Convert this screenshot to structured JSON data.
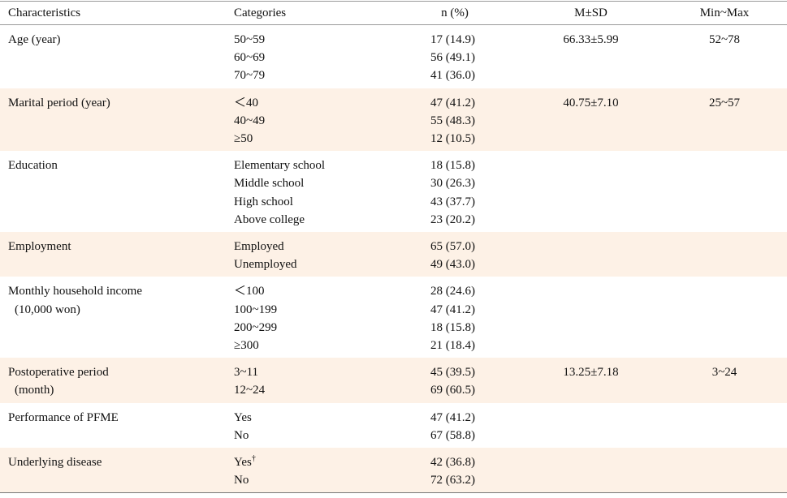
{
  "table": {
    "header": [
      "Characteristics",
      "Categories",
      "n (%)",
      "M±SD",
      "Min~Max"
    ],
    "rows": [
      {
        "characteristic": [
          "Age (year)"
        ],
        "items": [
          {
            "category": "50~59",
            "n": "17 (14.9)"
          },
          {
            "category": "60~69",
            "n": "56 (49.1)"
          },
          {
            "category": "70~79",
            "n": "41 (36.0)"
          }
        ],
        "msd": "66.33±5.99",
        "range": "52~78"
      },
      {
        "characteristic": [
          "Marital period (year)"
        ],
        "items": [
          {
            "category": "＜40",
            "n": "47 (41.2)"
          },
          {
            "category": "40~49",
            "n": "55 (48.3)"
          },
          {
            "category": "≥50",
            "n": "12 (10.5)"
          }
        ],
        "msd": "40.75±7.10",
        "range": "25~57"
      },
      {
        "characteristic": [
          "Education"
        ],
        "items": [
          {
            "category": "Elementary school",
            "n": "18 (15.8)"
          },
          {
            "category": "Middle school",
            "n": "30 (26.3)"
          },
          {
            "category": "High school",
            "n": "43 (37.7)"
          },
          {
            "category": "Above college",
            "n": "23 (20.2)"
          }
        ]
      },
      {
        "characteristic": [
          "Employment"
        ],
        "items": [
          {
            "category": "Employed",
            "n": "65 (57.0)"
          },
          {
            "category": "Unemployed",
            "n": "49 (43.0)"
          }
        ]
      },
      {
        "characteristic": [
          "Monthly household income",
          "(10,000 won)"
        ],
        "items": [
          {
            "category": "＜100",
            "n": "28 (24.6)"
          },
          {
            "category": "100~199",
            "n": "47 (41.2)"
          },
          {
            "category": "200~299",
            "n": "18 (15.8)"
          },
          {
            "category": "≥300",
            "n": "21 (18.4)"
          }
        ]
      },
      {
        "characteristic": [
          "Postoperative period",
          "(month)"
        ],
        "items": [
          {
            "category": "3~11",
            "n": "45 (39.5)"
          },
          {
            "category": "12~24",
            "n": "69 (60.5)"
          }
        ],
        "msd": "13.25±7.18",
        "range": "3~24"
      },
      {
        "characteristic": [
          "Performance of PFME"
        ],
        "items": [
          {
            "category": "Yes",
            "n": "47 (41.2)"
          },
          {
            "category": "No",
            "n": "67 (58.8)"
          }
        ]
      },
      {
        "characteristic": [
          "Underlying disease"
        ],
        "items": [
          {
            "category": "Yes",
            "sup": "†",
            "n": "42 (36.8)"
          },
          {
            "category": "No",
            "n": "72 (63.2)"
          }
        ]
      }
    ]
  }
}
